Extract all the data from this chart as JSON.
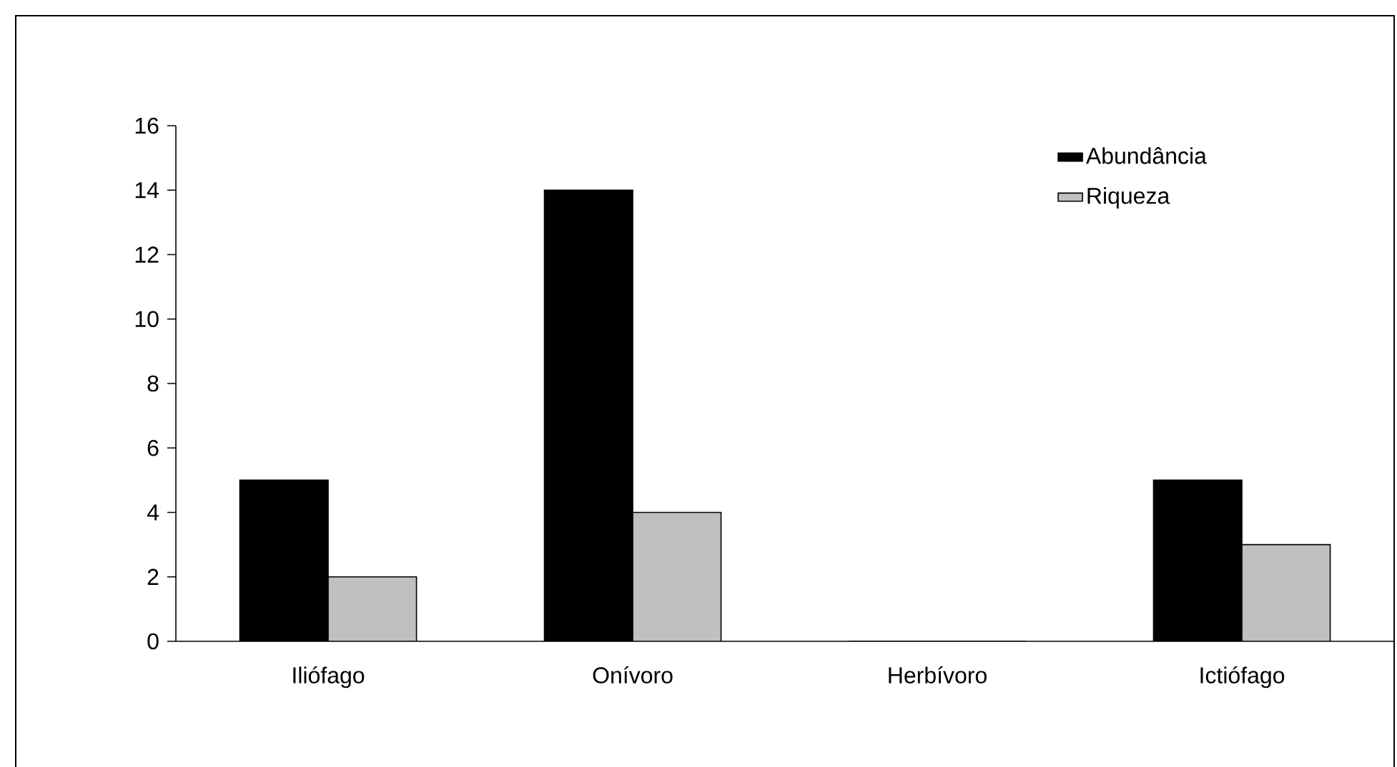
{
  "chart_data": {
    "type": "bar",
    "categories": [
      "Iliófago",
      "Onívoro",
      "Herbívoro",
      "Ictiófago"
    ],
    "series": [
      {
        "name": "Abundância",
        "color": "#000000",
        "values": [
          5,
          14,
          0,
          5
        ]
      },
      {
        "name": "Riqueza",
        "color": "#c0c0c0",
        "values": [
          2,
          4,
          0,
          3
        ]
      }
    ],
    "ylim": [
      0,
      16
    ],
    "yticks": [
      0,
      2,
      4,
      6,
      8,
      10,
      12,
      14,
      16
    ],
    "grid": false,
    "legend": "top right"
  }
}
